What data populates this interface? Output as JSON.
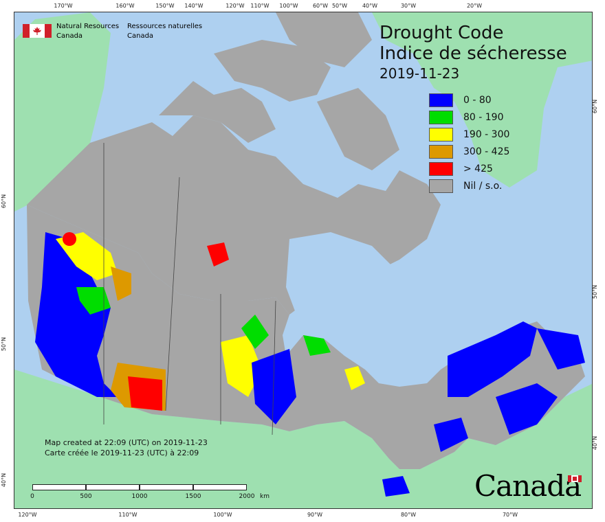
{
  "header": {
    "agency_en_line1": "Natural Resources",
    "agency_en_line2": "Canada",
    "agency_fr_line1": "Ressources naturelles",
    "agency_fr_line2": "Canada"
  },
  "title": {
    "en": "Drought Code",
    "fr": "Indice de sécheresse",
    "date": "2019-11-23"
  },
  "legend": [
    {
      "label": "0 - 80",
      "color": "#0000ff"
    },
    {
      "label": "80 - 190",
      "color": "#00dd00"
    },
    {
      "label": "190 - 300",
      "color": "#ffff00"
    },
    {
      "label": "300 - 425",
      "color": "#dd9900"
    },
    {
      "label": "> 425",
      "color": "#ff0000"
    },
    {
      "label": "Nil / s.o.",
      "color": "#a6a6a6"
    }
  ],
  "credit": {
    "en": "Map created at 22:09 (UTC) on 2019-11-23",
    "fr": "Carte créée le 2019-11-23 (UTC) à 22:09"
  },
  "scale_bar": {
    "labels": [
      "0",
      "500",
      "1000",
      "1500",
      "2000"
    ],
    "unit": "km"
  },
  "top_ticks": [
    "170°W",
    "160°W",
    "150°W",
    "140°W",
    "120°W",
    "110°W",
    "100°W",
    "90°W",
    "80°W",
    "60°W",
    "50°W",
    "40°W",
    "30°W",
    "20°W"
  ],
  "bottom_ticks": [
    "120°W",
    "110°W",
    "100°W",
    "90°W",
    "80°W",
    "70°W"
  ],
  "left_ticks": [
    "60°N",
    "50°N",
    "40°N"
  ],
  "right_ticks": [
    "60°N",
    "50°N",
    "40°N"
  ],
  "wordmark": "Canada",
  "colors": {
    "ocean": "#aed0f0",
    "land_other": "#9ee0b0",
    "canada_nil": "#a6a6a6",
    "water": "#aed0f0"
  }
}
